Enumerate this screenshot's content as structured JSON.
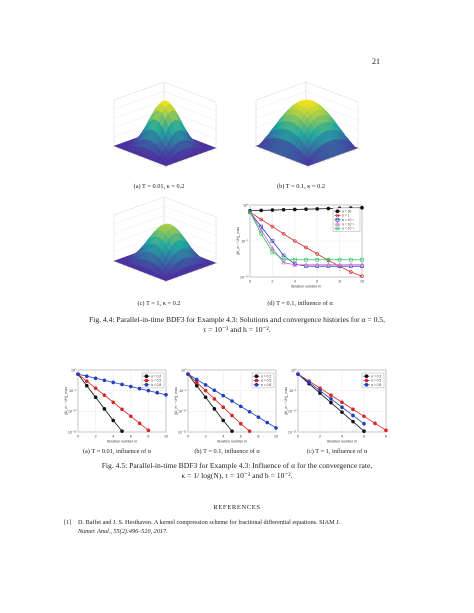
{
  "page_number": "21",
  "figure_4_4": {
    "caption_line1": "Fig. 4.4: Parallel-in-time BDF3 for Example 4.3: Solutions and convergence histories for α = 0.5,",
    "caption_line2": "τ = 10⁻³ and h = 10⁻².",
    "subcaptions": {
      "a": "(a) T = 0.01, κ = 0.2",
      "b": "(b) T = 0.1, κ = 0.2",
      "c": "(c) T = 1, κ = 0.2",
      "d": "(d) T = 0.1, influence of α"
    },
    "surface_colors": {
      "low": "#4b2ca0",
      "mid": "#1fa8a0",
      "high": "#f5e21a"
    }
  },
  "figure_4_5": {
    "caption_line1": "Fig. 4.5: Parallel-in-time BDF3 for Example 4.3: Influence of α for the convergence rate,",
    "caption_line2": "κ = 1/ log(N), τ = 10⁻³ and h = 10⁻².",
    "subcaptions": {
      "a": "(a) T = 0.01, influence of α",
      "b": "(b) T = 0.1, influence of α",
      "c": "(c) T = 1, influence of α"
    }
  },
  "references": {
    "heading": "REFERENCES",
    "items": [
      {
        "number": "[1]",
        "line1": "D. Baffet and J. S. Hesthaven.  A kernel compression scheme for fractional differential equations.  SIAM J.",
        "line2": "Numer. Anal., 55(2):496–520, 2017."
      }
    ]
  },
  "chart_data": [
    {
      "id": "fig4_4d",
      "type": "line",
      "xlabel": "Iteration number m",
      "ylabel": "||U_m − U*||_max",
      "xlim": [
        0,
        10
      ],
      "ylim_log10": [
        -10,
        0
      ],
      "y_scale": "log",
      "x_ticks": [
        0,
        2,
        4,
        6,
        8,
        10
      ],
      "y_ticks": [
        "10⁰",
        "10⁻⁵",
        "10⁻¹⁰"
      ],
      "legend_position": "top-right",
      "legend": [
        "α = 30",
        "α = 1",
        "α = 10⁻¹",
        "α = 10⁻²",
        "α = 10⁻³"
      ],
      "x": [
        0,
        1,
        2,
        3,
        4,
        5,
        6,
        7,
        8,
        9,
        10
      ],
      "series": [
        {
          "name": "α = 30",
          "color": "#111111",
          "marker": "circle",
          "log10_values": [
            -0.8,
            -0.75,
            -0.7,
            -0.66,
            -0.62,
            -0.58,
            -0.54,
            -0.5,
            -0.46,
            -0.42,
            -0.38
          ]
        },
        {
          "name": "α = 1",
          "color": "#d62728",
          "marker": "circle",
          "log10_values": [
            -1.0,
            -2.0,
            -3.0,
            -4.0,
            -5.0,
            -5.9,
            -6.8,
            -7.7,
            -8.5,
            -9.3,
            -9.9
          ]
        },
        {
          "name": "α = 10⁻¹",
          "color": "#1f3fbf",
          "marker": "square",
          "log10_values": [
            -1.0,
            -3.0,
            -5.0,
            -7.0,
            -8.2,
            -8.5,
            -8.5,
            -8.5,
            -8.5,
            -8.5,
            -8.5
          ]
        },
        {
          "name": "α = 10⁻²",
          "color": "#d35fd3",
          "marker": "triangle",
          "log10_values": [
            -1.0,
            -3.5,
            -6.0,
            -8.0,
            -8.3,
            -8.3,
            -8.3,
            -8.3,
            -8.3,
            -8.3,
            -8.3
          ]
        },
        {
          "name": "α = 10⁻³",
          "color": "#23c55e",
          "marker": "square",
          "log10_values": [
            -1.0,
            -4.0,
            -6.5,
            -7.6,
            -7.6,
            -7.6,
            -7.6,
            -7.6,
            -7.6,
            -7.6,
            -7.6
          ]
        }
      ]
    },
    {
      "id": "fig4_5a",
      "type": "line",
      "xlabel": "Iteration number m",
      "ylabel": "||U_m − U*||_max",
      "y_scale": "log",
      "xlim": [
        0,
        10
      ],
      "ylim_log10": [
        -15,
        0
      ],
      "x_ticks": [
        0,
        2,
        4,
        6,
        8,
        10
      ],
      "y_ticks": [
        "10⁰",
        "10⁻⁵",
        "10⁻¹⁰",
        "10⁻¹⁵"
      ],
      "legend_position": "top-right",
      "legend": [
        "α = 0.2",
        "α = 0.5",
        "α = 0.8"
      ],
      "series": [
        {
          "name": "α = 0.2",
          "color": "#111111",
          "marker": "circle",
          "x": [
            0,
            1,
            2,
            3,
            4,
            5
          ],
          "log10_values": [
            -1,
            -3.8,
            -6.6,
            -9.4,
            -12.2,
            -14.8
          ]
        },
        {
          "name": "α = 0.5",
          "color": "#d62728",
          "marker": "circle",
          "x": [
            0,
            1,
            2,
            3,
            4,
            5,
            6,
            7,
            8
          ],
          "log10_values": [
            -1,
            -2.7,
            -4.4,
            -6.1,
            -7.8,
            -9.5,
            -11.2,
            -12.9,
            -14.6
          ]
        },
        {
          "name": "α = 0.8",
          "color": "#1f3fbf",
          "marker": "circle",
          "x": [
            0,
            1,
            2,
            3,
            4,
            5,
            6,
            7,
            8,
            9,
            10
          ],
          "log10_values": [
            -1,
            -1.5,
            -2.0,
            -2.5,
            -3.0,
            -3.5,
            -4.0,
            -4.5,
            -5.0,
            -5.5,
            -6.0
          ]
        }
      ]
    },
    {
      "id": "fig4_5b",
      "type": "line",
      "xlabel": "Iteration number m",
      "ylabel": "||U_m − U*||_max",
      "y_scale": "log",
      "xlim": [
        0,
        10
      ],
      "ylim_log10": [
        -15,
        0
      ],
      "x_ticks": [
        0,
        2,
        4,
        6,
        8,
        10
      ],
      "y_ticks": [
        "10⁰",
        "10⁻⁵",
        "10⁻¹⁰",
        "10⁻¹⁵"
      ],
      "legend_position": "top-right",
      "legend": [
        "α = 0.2",
        "α = 0.5",
        "α = 0.8"
      ],
      "series": [
        {
          "name": "α = 0.2",
          "color": "#111111",
          "marker": "circle",
          "x": [
            0,
            1,
            2,
            3,
            4,
            5
          ],
          "log10_values": [
            -1,
            -3.8,
            -6.6,
            -9.4,
            -12.2,
            -14.8
          ]
        },
        {
          "name": "α = 0.5",
          "color": "#d62728",
          "marker": "circle",
          "x": [
            0,
            1,
            2,
            3,
            4,
            5,
            6,
            7
          ],
          "log10_values": [
            -1,
            -3.0,
            -5.0,
            -7.0,
            -9.0,
            -11.0,
            -13.0,
            -14.8
          ]
        },
        {
          "name": "α = 0.8",
          "color": "#1f3fbf",
          "marker": "circle",
          "x": [
            0,
            1,
            2,
            3,
            4,
            5,
            6,
            7,
            8,
            9,
            10
          ],
          "log10_values": [
            -1,
            -2.3,
            -3.6,
            -4.9,
            -6.2,
            -7.5,
            -8.8,
            -10.1,
            -11.4,
            -12.7,
            -14.0
          ]
        }
      ]
    },
    {
      "id": "fig4_5c",
      "type": "line",
      "xlabel": "Iteration number m",
      "ylabel": "||U_m − U*||_max",
      "y_scale": "log",
      "xlim": [
        0,
        8
      ],
      "ylim_log10": [
        -15,
        0
      ],
      "x_ticks": [
        0,
        2,
        4,
        6,
        8
      ],
      "y_ticks": [
        "10⁰",
        "10⁻⁵",
        "10⁻¹⁰",
        "10⁻¹⁵"
      ],
      "legend_position": "top-right",
      "legend": [
        "α = 0.2",
        "α = 0.5",
        "α = 0.8"
      ],
      "series": [
        {
          "name": "α = 0.2",
          "color": "#111111",
          "marker": "circle",
          "x": [
            0,
            1,
            2,
            3,
            4,
            5,
            6
          ],
          "log10_values": [
            -1,
            -3.3,
            -5.6,
            -7.9,
            -10.2,
            -12.5,
            -14.8
          ]
        },
        {
          "name": "α = 0.5",
          "color": "#d62728",
          "marker": "circle",
          "x": [
            0,
            1,
            2,
            3,
            4,
            5,
            6,
            7,
            8
          ],
          "log10_values": [
            -1,
            -2.7,
            -4.4,
            -6.1,
            -7.8,
            -9.5,
            -11.2,
            -12.9,
            -14.6
          ]
        },
        {
          "name": "α = 0.8",
          "color": "#1f3fbf",
          "marker": "circle",
          "x": [
            0,
            1,
            2,
            3,
            4,
            5,
            6
          ],
          "log10_values": [
            -1,
            -3.0,
            -5.0,
            -7.0,
            -9.0,
            -11.0,
            -13.0
          ]
        }
      ]
    }
  ]
}
